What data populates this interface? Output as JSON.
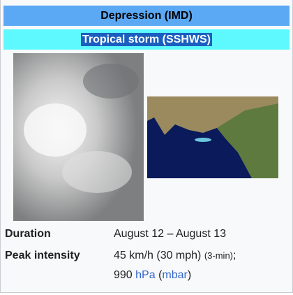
{
  "infobox": {
    "header": {
      "imd_class": "Depression (IMD)",
      "sshws_class": "Tropical storm (SSHWS)"
    },
    "rows": [
      {
        "label": "Duration",
        "value": "August 12 – August 13"
      },
      {
        "label": "Peak intensity",
        "wind": "45 km/h (30 mph)",
        "wind_note": "(3-min)",
        "separator": ";",
        "pressure": "990",
        "pressure_unit": "hPa",
        "alt_unit_open": "(",
        "alt_unit": "mbar",
        "alt_unit_close": ")"
      }
    ]
  }
}
